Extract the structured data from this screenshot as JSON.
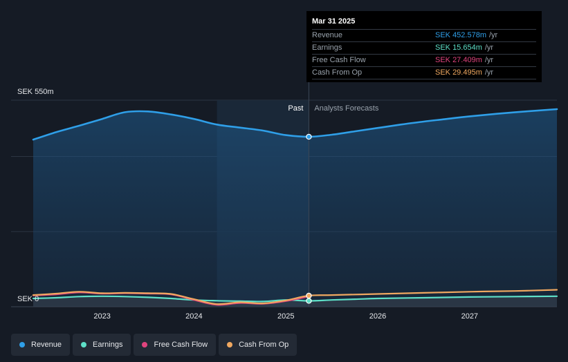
{
  "chart_data": {
    "type": "area",
    "currency": "SEK",
    "y_axis": {
      "max_label": "SEK 550m",
      "min_label": "SEK 0",
      "ylim": [
        0,
        550
      ]
    },
    "x_ticks": [
      "2023",
      "2024",
      "2025",
      "2026",
      "2027"
    ],
    "x_range": [
      2022.25,
      2027.95
    ],
    "divider": {
      "date": 2025.25,
      "past_label": "Past",
      "forecast_label": "Analysts Forecasts"
    },
    "colors": {
      "revenue": "#2f9fe8",
      "earnings": "#5ee0c8",
      "free_cash_flow": "#e0447e",
      "cash_from_op": "#f0a860",
      "background": "#151b25",
      "past_band": "#1b2a3c"
    },
    "series": [
      {
        "name": "Revenue",
        "key": "revenue",
        "points": [
          [
            2022.25,
            445
          ],
          [
            2022.5,
            465
          ],
          [
            2022.75,
            482
          ],
          [
            2023.0,
            500
          ],
          [
            2023.25,
            518
          ],
          [
            2023.5,
            520
          ],
          [
            2023.75,
            512
          ],
          [
            2024.0,
            500
          ],
          [
            2024.25,
            485
          ],
          [
            2024.5,
            477
          ],
          [
            2024.75,
            469
          ],
          [
            2025.0,
            457
          ],
          [
            2025.25,
            452.6
          ],
          [
            2025.5,
            458
          ],
          [
            2025.75,
            467
          ],
          [
            2026.0,
            476
          ],
          [
            2026.25,
            485
          ],
          [
            2026.5,
            493
          ],
          [
            2026.75,
            500
          ],
          [
            2027.0,
            507
          ],
          [
            2027.5,
            518
          ],
          [
            2027.95,
            526
          ]
        ]
      },
      {
        "name": "Earnings",
        "key": "earnings",
        "points": [
          [
            2022.25,
            22
          ],
          [
            2022.5,
            24
          ],
          [
            2022.75,
            27
          ],
          [
            2023.0,
            28
          ],
          [
            2023.25,
            27
          ],
          [
            2023.5,
            25
          ],
          [
            2023.75,
            22
          ],
          [
            2024.0,
            18
          ],
          [
            2024.25,
            16
          ],
          [
            2024.5,
            15
          ],
          [
            2024.75,
            14
          ],
          [
            2025.0,
            18
          ],
          [
            2025.25,
            15.7
          ],
          [
            2025.5,
            18
          ],
          [
            2025.75,
            20
          ],
          [
            2026.0,
            22
          ],
          [
            2026.5,
            24
          ],
          [
            2027.0,
            26
          ],
          [
            2027.5,
            27
          ],
          [
            2027.95,
            28
          ]
        ]
      },
      {
        "name": "Free Cash Flow",
        "key": "free_cash_flow",
        "points": [
          [
            2022.25,
            30
          ],
          [
            2022.5,
            33
          ],
          [
            2022.75,
            38
          ],
          [
            2023.0,
            35
          ],
          [
            2023.25,
            36
          ],
          [
            2023.5,
            35
          ],
          [
            2023.75,
            33
          ],
          [
            2024.0,
            18
          ],
          [
            2024.25,
            5
          ],
          [
            2024.5,
            10
          ],
          [
            2024.75,
            8
          ],
          [
            2025.0,
            15
          ],
          [
            2025.25,
            27.4
          ]
        ]
      },
      {
        "name": "Cash From Op",
        "key": "cash_from_op",
        "points": [
          [
            2022.25,
            31
          ],
          [
            2022.5,
            35
          ],
          [
            2022.75,
            40
          ],
          [
            2023.0,
            36
          ],
          [
            2023.25,
            37
          ],
          [
            2023.5,
            36
          ],
          [
            2023.75,
            34
          ],
          [
            2024.0,
            20
          ],
          [
            2024.25,
            7
          ],
          [
            2024.5,
            12
          ],
          [
            2024.75,
            9
          ],
          [
            2025.0,
            17
          ],
          [
            2025.25,
            29.5
          ],
          [
            2025.5,
            31
          ],
          [
            2026.0,
            34
          ],
          [
            2026.5,
            37
          ],
          [
            2027.0,
            40
          ],
          [
            2027.5,
            42
          ],
          [
            2027.95,
            45
          ]
        ]
      }
    ]
  },
  "tooltip": {
    "date": "Mar 31 2025",
    "rows": [
      {
        "label": "Revenue",
        "value": "SEK 452.578m",
        "unit": "/yr",
        "color": "#2f9fe8"
      },
      {
        "label": "Earnings",
        "value": "SEK 15.654m",
        "unit": "/yr",
        "color": "#5ee0c8"
      },
      {
        "label": "Free Cash Flow",
        "value": "SEK 27.409m",
        "unit": "/yr",
        "color": "#e0447e"
      },
      {
        "label": "Cash From Op",
        "value": "SEK 29.495m",
        "unit": "/yr",
        "color": "#f0a860"
      }
    ]
  },
  "legend": [
    {
      "label": "Revenue",
      "color": "#2f9fe8"
    },
    {
      "label": "Earnings",
      "color": "#5ee0c8"
    },
    {
      "label": "Free Cash Flow",
      "color": "#e0447e"
    },
    {
      "label": "Cash From Op",
      "color": "#f0a860"
    }
  ]
}
